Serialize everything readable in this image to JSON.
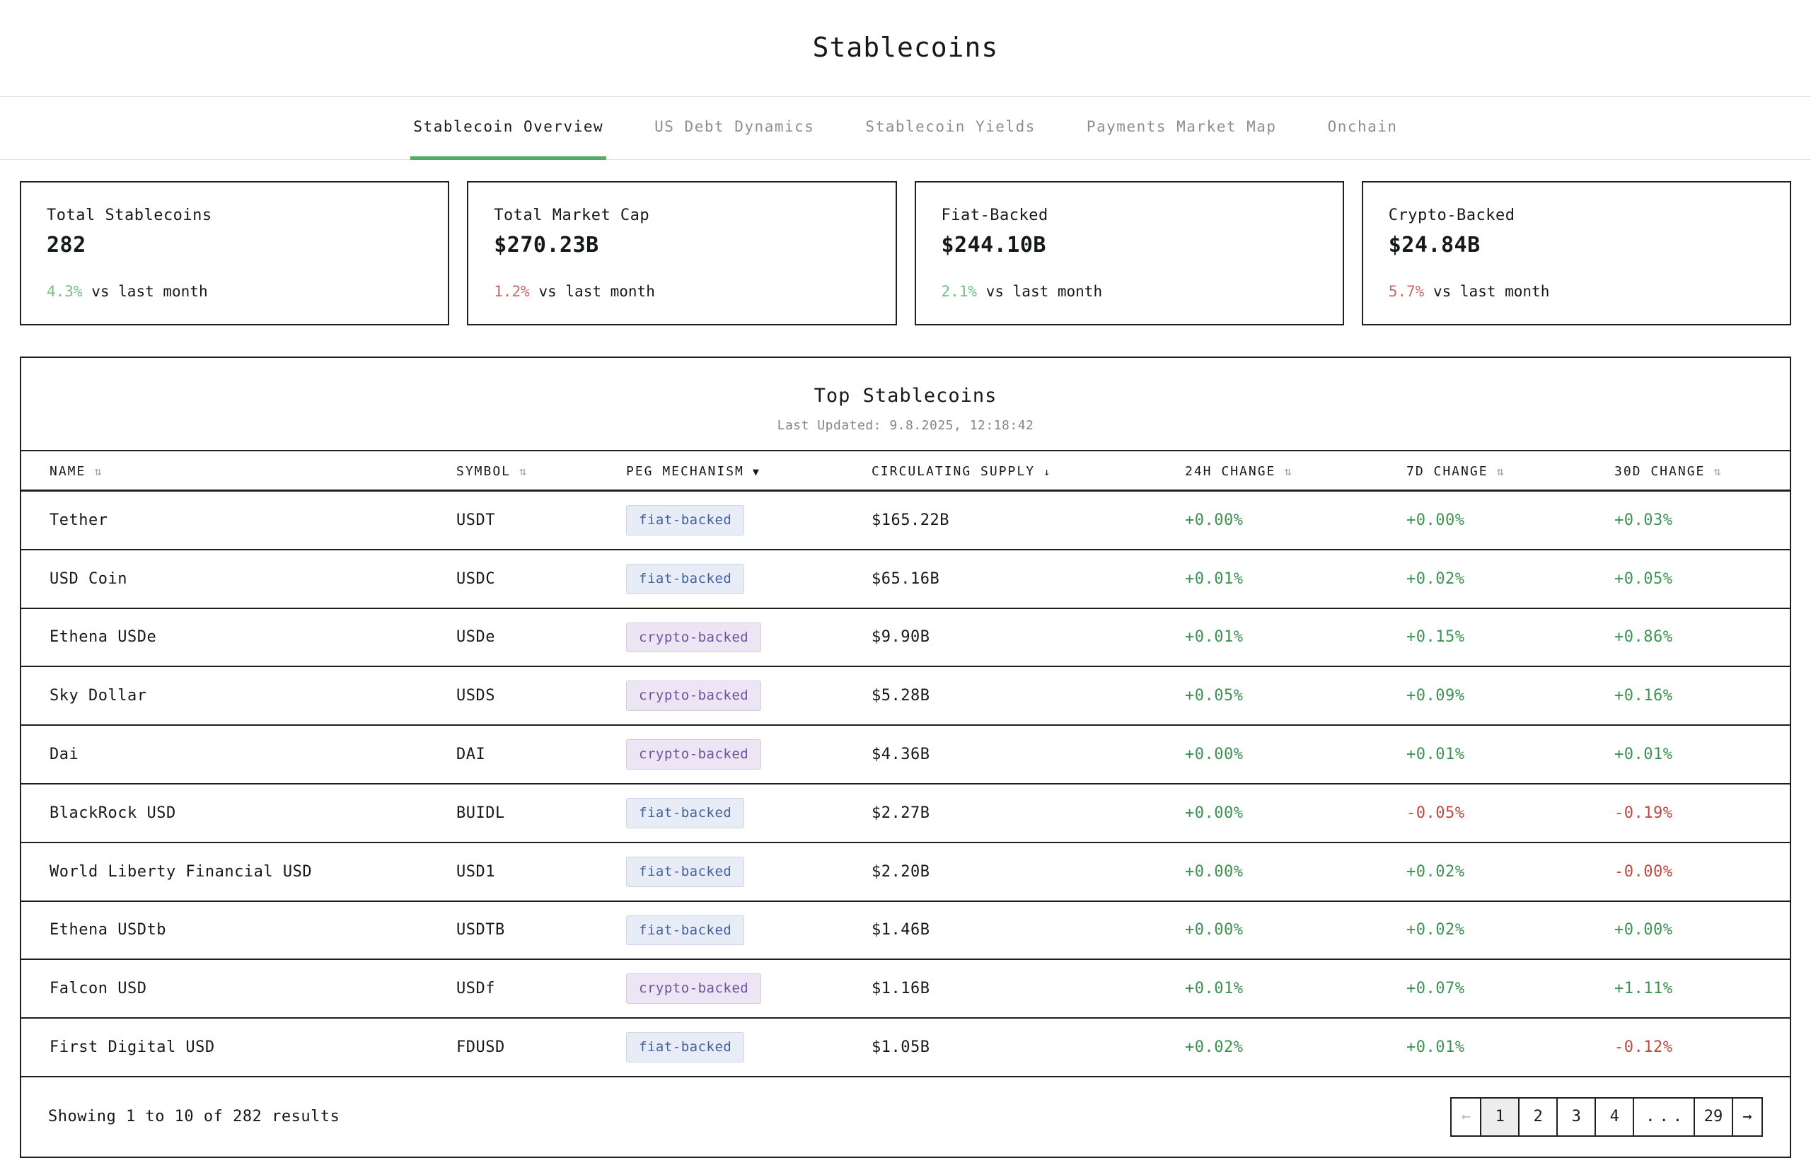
{
  "page": {
    "title": "Stablecoins"
  },
  "tabs": [
    {
      "label": "Stablecoin Overview",
      "active": true
    },
    {
      "label": "US Debt Dynamics",
      "active": false
    },
    {
      "label": "Stablecoin Yields",
      "active": false
    },
    {
      "label": "Payments Market Map",
      "active": false
    },
    {
      "label": "Onchain",
      "active": false
    }
  ],
  "stats": [
    {
      "label": "Total Stablecoins",
      "value": "282",
      "delta": "4.3%",
      "direction": "up",
      "delta_suffix": "vs last month"
    },
    {
      "label": "Total Market Cap",
      "value": "$270.23B",
      "delta": "1.2%",
      "direction": "down",
      "delta_suffix": "vs last month"
    },
    {
      "label": "Fiat-Backed",
      "value": "$244.10B",
      "delta": "2.1%",
      "direction": "up",
      "delta_suffix": "vs last month"
    },
    {
      "label": "Crypto-Backed",
      "value": "$24.84B",
      "delta": "5.7%",
      "direction": "down",
      "delta_suffix": "vs last month"
    }
  ],
  "table": {
    "title": "Top Stablecoins",
    "last_updated": "Last Updated: 9.8.2025, 12:18:42",
    "columns": [
      {
        "label": "NAME",
        "icon": "⇅",
        "icon_style": "muted"
      },
      {
        "label": "SYMBOL",
        "icon": "⇅",
        "icon_style": "muted"
      },
      {
        "label": "PEG MECHANISM",
        "icon": "▼",
        "icon_style": "dark"
      },
      {
        "label": "CIRCULATING SUPPLY",
        "icon": "↓",
        "icon_style": "dark"
      },
      {
        "label": "24H CHANGE",
        "icon": "⇅",
        "icon_style": "muted"
      },
      {
        "label": "7D CHANGE",
        "icon": "⇅",
        "icon_style": "muted"
      },
      {
        "label": "30D CHANGE",
        "icon": "⇅",
        "icon_style": "muted"
      }
    ],
    "rows": [
      {
        "name": "Tether",
        "symbol": "USDT",
        "peg": "fiat-backed",
        "supply": "$165.22B",
        "change_24h": "+0.00%",
        "change_7d": "+0.00%",
        "change_30d": "+0.03%"
      },
      {
        "name": "USD Coin",
        "symbol": "USDC",
        "peg": "fiat-backed",
        "supply": "$65.16B",
        "change_24h": "+0.01%",
        "change_7d": "+0.02%",
        "change_30d": "+0.05%"
      },
      {
        "name": "Ethena USDe",
        "symbol": "USDe",
        "peg": "crypto-backed",
        "supply": "$9.90B",
        "change_24h": "+0.01%",
        "change_7d": "+0.15%",
        "change_30d": "+0.86%"
      },
      {
        "name": "Sky Dollar",
        "symbol": "USDS",
        "peg": "crypto-backed",
        "supply": "$5.28B",
        "change_24h": "+0.05%",
        "change_7d": "+0.09%",
        "change_30d": "+0.16%"
      },
      {
        "name": "Dai",
        "symbol": "DAI",
        "peg": "crypto-backed",
        "supply": "$4.36B",
        "change_24h": "+0.00%",
        "change_7d": "+0.01%",
        "change_30d": "+0.01%"
      },
      {
        "name": "BlackRock USD",
        "symbol": "BUIDL",
        "peg": "fiat-backed",
        "supply": "$2.27B",
        "change_24h": "+0.00%",
        "change_7d": "-0.05%",
        "change_30d": "-0.19%"
      },
      {
        "name": "World Liberty Financial USD",
        "symbol": "USD1",
        "peg": "fiat-backed",
        "supply": "$2.20B",
        "change_24h": "+0.00%",
        "change_7d": "+0.02%",
        "change_30d": "-0.00%"
      },
      {
        "name": "Ethena USDtb",
        "symbol": "USDTB",
        "peg": "fiat-backed",
        "supply": "$1.46B",
        "change_24h": "+0.00%",
        "change_7d": "+0.02%",
        "change_30d": "+0.00%"
      },
      {
        "name": "Falcon USD",
        "symbol": "USDf",
        "peg": "crypto-backed",
        "supply": "$1.16B",
        "change_24h": "+0.01%",
        "change_7d": "+0.07%",
        "change_30d": "+1.11%"
      },
      {
        "name": "First Digital USD",
        "symbol": "FDUSD",
        "peg": "fiat-backed",
        "supply": "$1.05B",
        "change_24h": "+0.02%",
        "change_7d": "+0.01%",
        "change_30d": "-0.12%"
      }
    ],
    "footer": {
      "showing": "Showing 1 to 10 of 282 results",
      "pages": [
        {
          "label": "←",
          "state": "disabled arrow"
        },
        {
          "label": "1",
          "state": "active"
        },
        {
          "label": "2",
          "state": ""
        },
        {
          "label": "3",
          "state": ""
        },
        {
          "label": "4",
          "state": ""
        },
        {
          "label": "...",
          "state": "ellipsis"
        },
        {
          "label": "29",
          "state": ""
        },
        {
          "label": "→",
          "state": "arrow"
        }
      ]
    }
  },
  "colors": {
    "accent_green": "#57ab6a",
    "positive": "#3d9152",
    "negative": "#bd4741",
    "card_positive": "#74c083",
    "card_negative": "#c96a6a",
    "badge_fiat_bg": "#e7ecf6",
    "badge_fiat_text": "#44619d",
    "badge_crypto_bg": "#ebe5f4",
    "badge_crypto_text": "#6e51a1"
  }
}
